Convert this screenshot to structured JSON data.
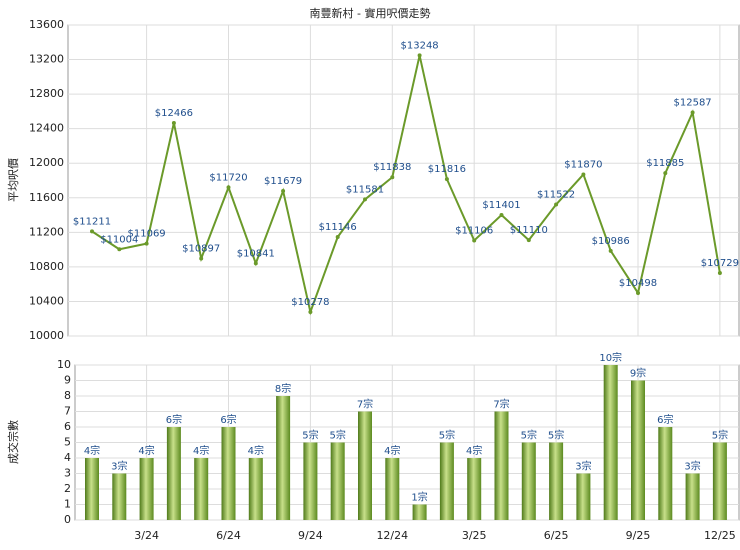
{
  "chart_data": [
    {
      "type": "line",
      "title": "南豐新村 - 實用呎價走勢",
      "ylabel": "平均呎價",
      "color": "#6b9a2a",
      "grid": true,
      "values": [
        11211,
        11004,
        11069,
        12466,
        10897,
        11720,
        10841,
        11679,
        10278,
        11146,
        11581,
        11838,
        13248,
        11816,
        11106,
        11401,
        11110,
        11522,
        11870,
        10986,
        10498,
        11885,
        12587,
        10729
      ],
      "value_labels": [
        "$11211",
        "$11004",
        "$11069",
        "$12466",
        "$10897",
        "$11720",
        "$10841",
        "$11679",
        "$10278",
        "$11146",
        "$11581",
        "$11838",
        "$13248",
        "$11816",
        "$11106",
        "$11401",
        "$11110",
        "$11522",
        "$11870",
        "$10986",
        "$10498",
        "$11885",
        "$12587",
        "$10729"
      ],
      "ylim": [
        10000,
        13600
      ],
      "yticks": [
        10000,
        10400,
        10800,
        11200,
        11600,
        12000,
        12400,
        12800,
        13200,
        13600
      ]
    },
    {
      "type": "bar",
      "ylabel": "成交宗數",
      "color": "#6b9a2a",
      "grid": true,
      "categories": [
        null,
        null,
        "3/24",
        null,
        null,
        "6/24",
        null,
        null,
        "9/24",
        null,
        null,
        "12/24",
        null,
        null,
        "3/25",
        null,
        null,
        "6/25",
        null,
        null,
        "9/25",
        null,
        null,
        "12/25"
      ],
      "values": [
        4,
        3,
        4,
        6,
        4,
        6,
        4,
        8,
        5,
        5,
        7,
        4,
        1,
        5,
        4,
        7,
        5,
        5,
        3,
        10,
        9,
        6,
        3,
        5
      ],
      "value_labels": [
        "4宗",
        "3宗",
        "4宗",
        "6宗",
        "4宗",
        "6宗",
        "4宗",
        "8宗",
        "5宗",
        "5宗",
        "7宗",
        "4宗",
        "1宗",
        "5宗",
        "4宗",
        "7宗",
        "5宗",
        "5宗",
        "3宗",
        "10宗",
        "9宗",
        "6宗",
        "3宗",
        "5宗"
      ],
      "ylim": [
        0,
        10
      ],
      "yticks": [
        0,
        1,
        2,
        3,
        4,
        5,
        6,
        7,
        8,
        9,
        10
      ]
    }
  ]
}
